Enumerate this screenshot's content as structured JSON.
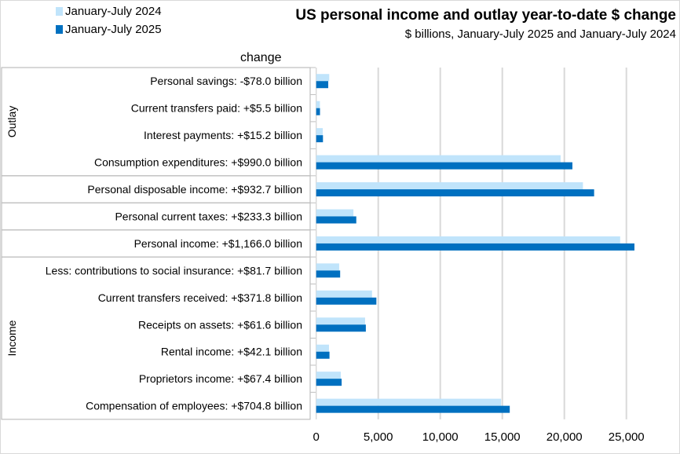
{
  "chart_data": {
    "type": "bar",
    "orientation": "horizontal",
    "title": "US personal income and outlay year-to-date $ change",
    "subtitle": "$ billions, January-July 2025 and January-July 2024",
    "column_header": "change",
    "groups": [
      {
        "name": "Outlay",
        "start": 0,
        "count": 4
      },
      {
        "name": "",
        "start": 4,
        "count": 1
      },
      {
        "name": "",
        "start": 5,
        "count": 1
      },
      {
        "name": "",
        "start": 6,
        "count": 1
      },
      {
        "name": "Income",
        "start": 7,
        "count": 6
      }
    ],
    "categories": [
      "Personal savings:  -$78.0 billion",
      "Current transfers paid:  +$5.5 billion",
      "Interest payments:  +$15.2 billion",
      "Consumption expenditures:  +$990.0 billion",
      "Personal disposable income:  +$932.7 billion",
      "Personal current taxes:  +$233.3 billion",
      "Personal income:  +$1,166.0 billion",
      "Less: contributions to social insurance:  +$81.7 billion",
      "Current transfers received:  +$371.8 billion",
      "Receipts on assets:  +$61.6 billion",
      "Rental income:  +$42.1 billion",
      "Proprietors income:  +$67.4 billion",
      "Compensation of employees:  +$704.8 billion"
    ],
    "series": [
      {
        "name": "January-July 2024",
        "color": "#c0e4fb",
        "values": [
          1050,
          300,
          530,
          19700,
          21500,
          3000,
          24500,
          1850,
          4500,
          3940,
          1030,
          1980,
          14900
        ]
      },
      {
        "name": "January-July 2025",
        "color": "#0070c0",
        "values": [
          970,
          305,
          545,
          20650,
          22400,
          3230,
          25650,
          1930,
          4850,
          4000,
          1070,
          2050,
          15600
        ]
      }
    ],
    "xlim": [
      0,
      27500
    ],
    "xticks": [
      0,
      5000,
      10000,
      15000,
      20000,
      25000
    ],
    "xtick_labels": [
      "0",
      "5,000",
      "10,000",
      "15,000",
      "20,000",
      "25,000"
    ],
    "grid": true,
    "legend": "top-left"
  }
}
